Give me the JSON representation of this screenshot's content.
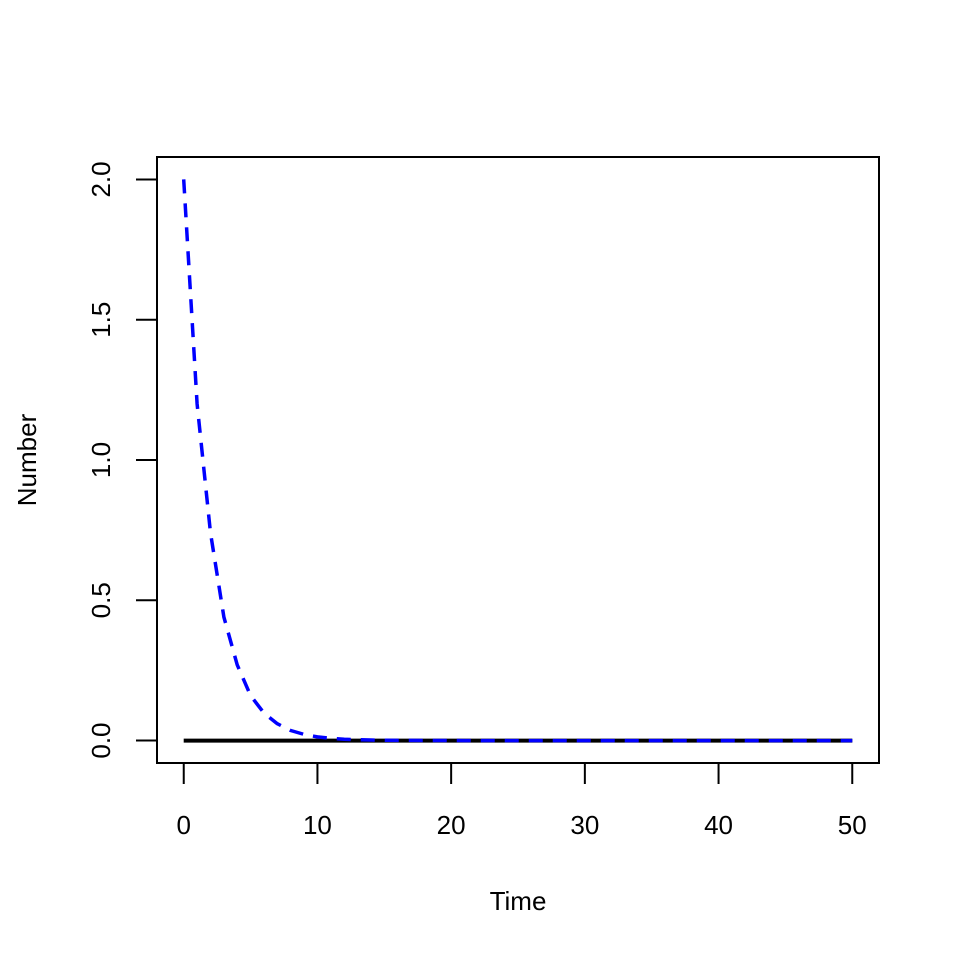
{
  "chart_data": {
    "type": "line",
    "title": "",
    "xlabel": "Time",
    "ylabel": "Number",
    "xlim": [
      -2,
      52
    ],
    "ylim": [
      -0.08,
      2.08
    ],
    "x_ticks": [
      0,
      10,
      20,
      30,
      40,
      50
    ],
    "x_tick_labels": [
      "0",
      "10",
      "20",
      "30",
      "40",
      "50"
    ],
    "y_ticks": [
      0,
      0.5,
      1,
      1.5,
      2
    ],
    "y_tick_labels": [
      "0.0",
      "0.5",
      "1.0",
      "1.5",
      "2.0"
    ],
    "grid": false,
    "legend": "none",
    "series": [
      {
        "color": "#000000",
        "style": "solid",
        "x": [
          0,
          1,
          2,
          3,
          4,
          5,
          6,
          7,
          8,
          9,
          10,
          11,
          12,
          13,
          14,
          15,
          16,
          17,
          18,
          19,
          20,
          21,
          22,
          23,
          24,
          25,
          26,
          27,
          28,
          29,
          30,
          31,
          32,
          33,
          34,
          35,
          36,
          37,
          38,
          39,
          40,
          41,
          42,
          43,
          44,
          45,
          46,
          47,
          48,
          49,
          50
        ],
        "y": [
          0,
          0,
          0,
          0,
          0,
          0,
          0,
          0,
          0,
          0,
          0,
          0,
          0,
          0,
          0,
          0,
          0,
          0,
          0,
          0,
          0,
          0,
          0,
          0,
          0,
          0,
          0,
          0,
          0,
          0,
          0,
          0,
          0,
          0,
          0,
          0,
          0,
          0,
          0,
          0,
          0,
          0,
          0,
          0,
          0,
          0,
          0,
          0,
          0,
          0,
          0
        ]
      },
      {
        "color": "#0000ff",
        "style": "dashed",
        "x": [
          0,
          1,
          2,
          3,
          4,
          5,
          6,
          7,
          8,
          9,
          10,
          11,
          12,
          13,
          14,
          15,
          16,
          17,
          18,
          19,
          20,
          21,
          22,
          23,
          24,
          25,
          26,
          27,
          28,
          29,
          30,
          31,
          32,
          33,
          34,
          35,
          36,
          37,
          38,
          39,
          40,
          41,
          42,
          43,
          44,
          45,
          46,
          47,
          48,
          49,
          50
        ],
        "y": [
          2.0,
          1.2,
          0.74,
          0.44,
          0.27,
          0.16,
          0.098,
          0.06,
          0.036,
          0.022,
          0.013,
          0.008,
          0.005,
          0.003,
          0.002,
          0.001,
          0.0007,
          0.0004,
          0.0003,
          0.0002,
          0.0001,
          0,
          0,
          0,
          0,
          0,
          0,
          0,
          0,
          0,
          0,
          0,
          0,
          0,
          0,
          0,
          0,
          0,
          0,
          0,
          0,
          0,
          0,
          0,
          0,
          0,
          0,
          0,
          0,
          0,
          0
        ]
      }
    ]
  }
}
